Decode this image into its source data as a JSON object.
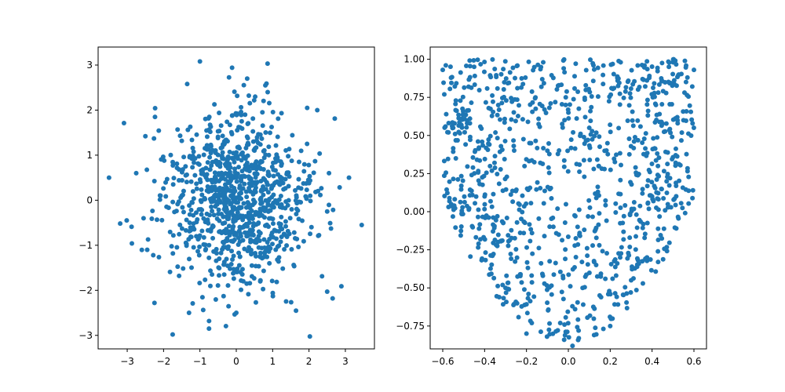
{
  "chart_data": [
    {
      "type": "scatter",
      "title": "",
      "xlabel": "",
      "ylabel": "",
      "xlim": [
        -3.8,
        3.8
      ],
      "ylim": [
        -3.3,
        3.4
      ],
      "xticks": [
        -3,
        -2,
        -1,
        0,
        1,
        2,
        3
      ],
      "yticks": [
        -3,
        -2,
        -1,
        0,
        1,
        2,
        3
      ],
      "xtick_labels": [
        "−3",
        "−2",
        "−1",
        "0",
        "1",
        "2",
        "3"
      ],
      "ytick_labels": [
        "−3",
        "−2",
        "−1",
        "0",
        "1",
        "2",
        "3"
      ],
      "grid": false,
      "color": "#1f77b4",
      "n_points": 1000,
      "series": [
        {
          "points": [
            [
              -3.5,
              0.5
            ],
            [
              3.45,
              -0.55
            ],
            [
              -1.0,
              3.08
            ],
            [
              0.3,
              2.7
            ],
            [
              2.65,
              -2.18
            ],
            [
              -1.75,
              -2.98
            ],
            [
              -2.25,
              -2.28
            ],
            [
              0.0,
              -2.5
            ],
            [
              -0.75,
              -2.85
            ],
            [
              3.1,
              0.5
            ],
            [
              -2.5,
              1.42
            ],
            [
              1.95,
              2.05
            ],
            [
              -1.35,
              2.58
            ],
            [
              -2.55,
              -0.4
            ],
            [
              2.55,
              0.6
            ],
            [
              2.5,
              -2.03
            ],
            [
              -1.3,
              -2.5
            ],
            [
              0.8,
              2.55
            ],
            [
              -2.45,
              -1.1
            ],
            [
              2.5,
              -0.25
            ]
          ]
        }
      ]
    },
    {
      "type": "scatter",
      "title": "",
      "xlabel": "",
      "ylabel": "",
      "xlim": [
        -0.66,
        0.66
      ],
      "ylim": [
        -0.9,
        1.08
      ],
      "xticks": [
        -0.6,
        -0.4,
        -0.2,
        0.0,
        0.2,
        0.4,
        0.6
      ],
      "yticks": [
        -0.75,
        -0.5,
        -0.25,
        0.0,
        0.25,
        0.5,
        0.75,
        1.0
      ],
      "xtick_labels": [
        "−0.6",
        "−0.4",
        "−0.2",
        "0.0",
        "0.2",
        "0.4",
        "0.6"
      ],
      "ytick_labels": [
        "−0.75",
        "−0.50",
        "−0.25",
        "0.00",
        "0.25",
        "0.50",
        "0.75",
        "1.00"
      ],
      "grid": false,
      "color": "#1f77b4",
      "n_points": 1000,
      "series": [
        {
          "points": [
            [
              -0.6,
              0.93
            ],
            [
              0.6,
              0.93
            ],
            [
              0.02,
              -0.88
            ],
            [
              -0.02,
              -0.84
            ],
            [
              0.05,
              -0.83
            ],
            [
              -0.55,
              0.55
            ],
            [
              0.55,
              0.6
            ],
            [
              -0.45,
              0.95
            ],
            [
              0.5,
              0.98
            ],
            [
              -0.2,
              -0.8
            ],
            [
              0.2,
              -0.75
            ],
            [
              -0.3,
              -0.5
            ],
            [
              0.3,
              -0.45
            ],
            [
              -0.4,
              0.1
            ],
            [
              0.4,
              0.1
            ],
            [
              -0.1,
              0.4
            ],
            [
              0.1,
              0.55
            ],
            [
              0.25,
              0.98
            ],
            [
              -0.12,
              0.98
            ],
            [
              0.12,
              0.96
            ]
          ]
        }
      ]
    }
  ]
}
